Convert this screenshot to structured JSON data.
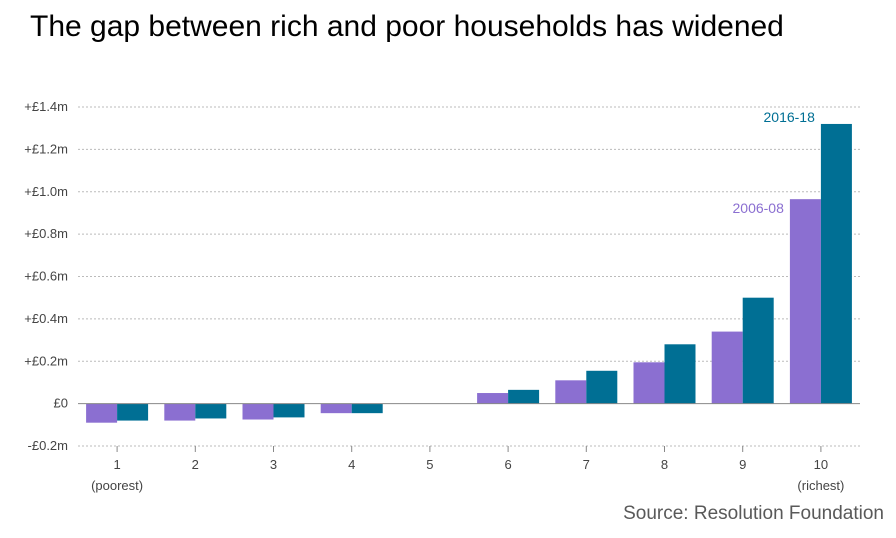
{
  "title": "The gap between rich and poor households has widened",
  "source": "Source: Resolution Foundation",
  "colors": {
    "series_2006": "#8b6fd1",
    "series_2016": "#006f94",
    "grid": "#bbbbbb",
    "axis": "#888888"
  },
  "chart_data": {
    "type": "bar",
    "categories": [
      "1",
      "2",
      "3",
      "4",
      "5",
      "6",
      "7",
      "8",
      "9",
      "10"
    ],
    "category_sublabels": [
      "(poorest)",
      "",
      "",
      "",
      "",
      "",
      "",
      "",
      "",
      "(richest)"
    ],
    "series": [
      {
        "name": "2006-08",
        "color": "#8b6fd1",
        "values": [
          -0.09,
          -0.08,
          -0.075,
          -0.045,
          0,
          0.05,
          0.11,
          0.195,
          0.34,
          0.965
        ]
      },
      {
        "name": "2016-18",
        "color": "#006f94",
        "values": [
          -0.08,
          -0.07,
          -0.065,
          -0.045,
          0,
          0.065,
          0.155,
          0.28,
          0.5,
          1.32
        ]
      }
    ],
    "y_ticks": [
      {
        "value": 1.4,
        "label": "+£1.4m"
      },
      {
        "value": 1.2,
        "label": "+£1.2m"
      },
      {
        "value": 1.0,
        "label": "+£1.0m"
      },
      {
        "value": 0.8,
        "label": "+£0.8m"
      },
      {
        "value": 0.6,
        "label": "+£0.6m"
      },
      {
        "value": 0.4,
        "label": "+£0.4m"
      },
      {
        "value": 0.2,
        "label": "+£0.2m"
      },
      {
        "value": 0,
        "label": "£0"
      },
      {
        "value": -0.2,
        "label": "-£0.2m"
      }
    ],
    "ylim": [
      -0.2,
      1.4
    ],
    "grid": true,
    "legend": "inline labels above richest decile bars"
  }
}
